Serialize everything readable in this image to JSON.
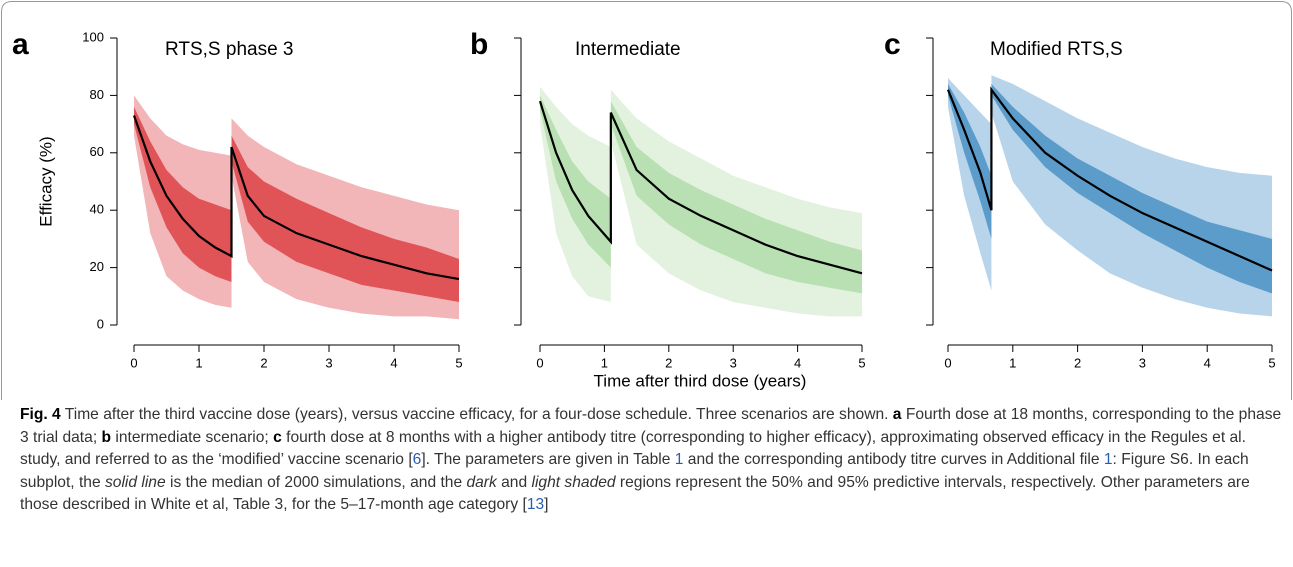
{
  "figure": {
    "xlabel": "Time after third dose (years)"
  },
  "chart_data": [
    {
      "type": "band-line",
      "label": "a",
      "title": "RTS,S phase 3",
      "ylabel": "Efficacy (%)",
      "x": [
        0,
        0.25,
        0.5,
        0.75,
        1,
        1.25,
        1.5,
        1.5,
        1.75,
        2,
        2.5,
        3,
        3.5,
        4,
        4.5,
        5
      ],
      "series": [
        {
          "color": "#000000",
          "values": [
            73,
            57,
            45,
            37,
            31,
            27,
            24,
            62,
            45,
            38,
            32,
            28,
            24,
            21,
            18,
            16
          ]
        }
      ],
      "bands": [
        {
          "color": "#f2b5b8",
          "lower": [
            66,
            32,
            17,
            12,
            9,
            7,
            6,
            52,
            22,
            15,
            9,
            6,
            4,
            3,
            3,
            2
          ],
          "upper": [
            80,
            72,
            66,
            63,
            61,
            60,
            59,
            72,
            66,
            62,
            56,
            52,
            48,
            45,
            42,
            40
          ]
        },
        {
          "color": "#e05457",
          "lower": [
            70,
            48,
            34,
            25,
            20,
            17,
            15,
            57,
            36,
            29,
            22,
            18,
            14,
            12,
            10,
            8
          ],
          "upper": [
            76,
            64,
            54,
            48,
            44,
            42,
            40,
            66,
            55,
            50,
            44,
            39,
            34,
            30,
            27,
            23
          ]
        }
      ],
      "xlim": [
        0,
        5
      ],
      "xticks": [
        0,
        1,
        2,
        3,
        4,
        5
      ],
      "ylim": [
        0,
        100
      ],
      "yticks": [
        0,
        20,
        40,
        60,
        80,
        100
      ],
      "ytick_labels": true
    },
    {
      "type": "band-line",
      "label": "b",
      "title": "Intermediate",
      "x": [
        0,
        0.25,
        0.5,
        0.75,
        1.1,
        1.1,
        1.5,
        2,
        2.5,
        3,
        3.5,
        4,
        4.5,
        5
      ],
      "series": [
        {
          "color": "#000000",
          "values": [
            78,
            60,
            47,
            38,
            29,
            74,
            54,
            44,
            38,
            33,
            28,
            24,
            21,
            18
          ]
        }
      ],
      "bands": [
        {
          "color": "#e3f2df",
          "lower": [
            70,
            32,
            17,
            10,
            8,
            64,
            28,
            18,
            12,
            8,
            6,
            4,
            3,
            3
          ],
          "upper": [
            83,
            76,
            70,
            66,
            62,
            82,
            72,
            64,
            58,
            52,
            48,
            44,
            41,
            39
          ]
        },
        {
          "color": "#b9e0b3",
          "lower": [
            75,
            50,
            37,
            28,
            20,
            70,
            45,
            35,
            28,
            23,
            18,
            15,
            13,
            11
          ],
          "upper": [
            80,
            68,
            57,
            50,
            44,
            78,
            62,
            53,
            47,
            42,
            37,
            33,
            29,
            26
          ]
        }
      ],
      "xlim": [
        0,
        5
      ],
      "xticks": [
        0,
        1,
        2,
        3,
        4,
        5
      ],
      "ylim": [
        0,
        100
      ],
      "yticks": [
        0,
        20,
        40,
        60,
        80,
        100
      ],
      "ytick_labels": false
    },
    {
      "type": "band-line",
      "label": "c",
      "title": "Modified RTS,S",
      "x": [
        0,
        0.25,
        0.5,
        0.67,
        0.67,
        1,
        1.5,
        2,
        2.5,
        3,
        3.5,
        4,
        4.5,
        5
      ],
      "series": [
        {
          "color": "#000000",
          "values": [
            82,
            68,
            53,
            40,
            82,
            72,
            60,
            52,
            45,
            39,
            34,
            29,
            24,
            19
          ]
        }
      ],
      "bands": [
        {
          "color": "#b8d4ea",
          "lower": [
            76,
            45,
            25,
            12,
            74,
            50,
            35,
            26,
            18,
            13,
            9,
            6,
            4,
            3
          ],
          "upper": [
            86,
            80,
            74,
            70,
            87,
            84,
            78,
            72,
            67,
            62,
            58,
            55,
            53,
            52
          ]
        },
        {
          "color": "#5b9ccb",
          "lower": [
            80,
            60,
            43,
            30,
            80,
            68,
            55,
            46,
            39,
            32,
            26,
            20,
            15,
            11
          ],
          "upper": [
            84,
            74,
            62,
            52,
            84,
            76,
            66,
            58,
            52,
            46,
            41,
            36,
            33,
            30
          ]
        }
      ],
      "xlim": [
        0,
        5
      ],
      "xticks": [
        0,
        1,
        2,
        3,
        4,
        5
      ],
      "ylim": [
        0,
        100
      ],
      "yticks": [
        0,
        20,
        40,
        60,
        80,
        100
      ],
      "ytick_labels": false
    }
  ],
  "caption": [
    {
      "text": "Fig. 4",
      "style": "bold"
    },
    {
      "text": " Time after the third vaccine dose (years), versus vaccine efficacy, for a four-dose schedule. Three scenarios are shown. "
    },
    {
      "text": "a",
      "style": "bold"
    },
    {
      "text": " Fourth dose at 18 months, corresponding to the phase 3 trial data; "
    },
    {
      "text": "b",
      "style": "bold"
    },
    {
      "text": " intermediate scenario; "
    },
    {
      "text": "c",
      "style": "bold"
    },
    {
      "text": " fourth dose at 8 months with a higher antibody titre (corresponding to higher efficacy), approximating observed efficacy in the Regules et al. study, and referred to as the ‘modified’ vaccine scenario ["
    },
    {
      "text": "6",
      "style": "link"
    },
    {
      "text": "]. The parameters are given in Table "
    },
    {
      "text": "1",
      "style": "link"
    },
    {
      "text": " and the corresponding antibody titre curves in Additional file "
    },
    {
      "text": "1",
      "style": "link"
    },
    {
      "text": ": Figure S6. In each subplot, the "
    },
    {
      "text": "solid line",
      "style": "italic"
    },
    {
      "text": " is the median of 2000 simulations, and the "
    },
    {
      "text": "dark",
      "style": "italic"
    },
    {
      "text": " and "
    },
    {
      "text": "light shaded",
      "style": "italic"
    },
    {
      "text": " regions represent the 50% and 95% predictive intervals, respectively. Other parameters are those described in White et al, Table 3, for the 5–17-month age category ["
    },
    {
      "text": "13",
      "style": "link"
    },
    {
      "text": "]"
    }
  ]
}
